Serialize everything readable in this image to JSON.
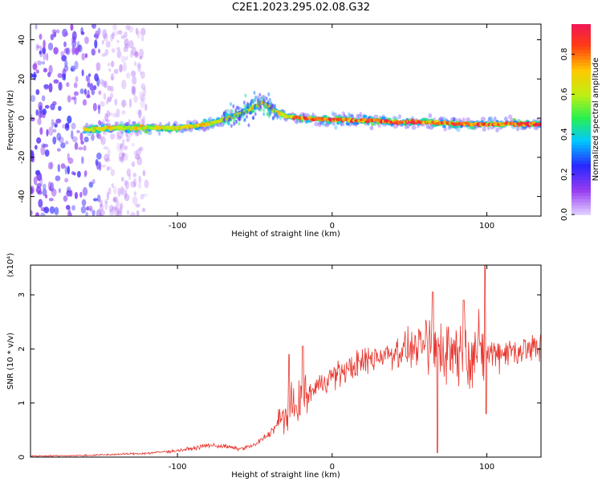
{
  "title": "C2E1.2023.295.02.08.G32",
  "chart_data": [
    {
      "type": "heatmap",
      "xlabel": "Height of straight line (km)",
      "ylabel": "Frequency (Hz)",
      "xlim": [
        -195,
        135
      ],
      "ylim": [
        -50,
        48
      ],
      "xticks": [
        -100,
        0,
        100
      ],
      "yticks": [
        -40,
        -20,
        0,
        20,
        40
      ],
      "colorbar": {
        "label": "Normalized spectral amplitude",
        "range": [
          0,
          0.95
        ],
        "ticks": [
          "0.0",
          "0.2",
          "0.4",
          "0.6",
          "0.8"
        ],
        "tick_values": [
          0.0,
          0.2,
          0.4,
          0.6,
          0.8
        ]
      },
      "ridge": {
        "x": [
          -160,
          -140,
          -120,
          -100,
          -80,
          -60,
          -50,
          -45,
          -40,
          -30,
          -20,
          0,
          20,
          40,
          60,
          80,
          90,
          100,
          120,
          135
        ],
        "y": [
          -6,
          -5,
          -5,
          -5,
          -3,
          2,
          6,
          8,
          5,
          1,
          0,
          -1,
          -1,
          -2,
          -2,
          -3,
          -3,
          -3,
          -3,
          -3
        ]
      },
      "noise_region_x": [
        -195,
        -150
      ]
    },
    {
      "type": "line",
      "xlabel": "Height of straight line (km)",
      "ylabel": "SNR (10 * v/v)",
      "yunit_label": "(x10⁴)",
      "xlim": [
        -195,
        135
      ],
      "ylim": [
        0,
        3.55
      ],
      "xticks": [
        -100,
        0,
        100
      ],
      "yticks": [
        0,
        1,
        2,
        3
      ],
      "color": "#e8372f",
      "trend": {
        "x": [
          -195,
          -160,
          -140,
          -120,
          -100,
          -90,
          -80,
          -70,
          -60,
          -50,
          -40,
          -30,
          -20,
          -10,
          0,
          10,
          20,
          30,
          40,
          50,
          60,
          70,
          80,
          90,
          100,
          110,
          120,
          135
        ],
        "y": [
          0.02,
          0.03,
          0.05,
          0.07,
          0.12,
          0.16,
          0.22,
          0.2,
          0.15,
          0.22,
          0.45,
          0.8,
          1.05,
          1.3,
          1.5,
          1.62,
          1.75,
          1.88,
          1.95,
          2.0,
          2.05,
          2.02,
          1.98,
          1.95,
          1.92,
          1.95,
          1.98,
          2.0
        ]
      },
      "spikes": [
        {
          "x": -28,
          "y": 1.9
        },
        {
          "x": -19,
          "y": 2.05
        },
        {
          "x": 65,
          "y": 3.05
        },
        {
          "x": 68,
          "y": 0.08
        },
        {
          "x": 85,
          "y": 2.9
        },
        {
          "x": 99,
          "y": 3.55
        },
        {
          "x": 99.5,
          "y": 0.8
        }
      ]
    }
  ]
}
